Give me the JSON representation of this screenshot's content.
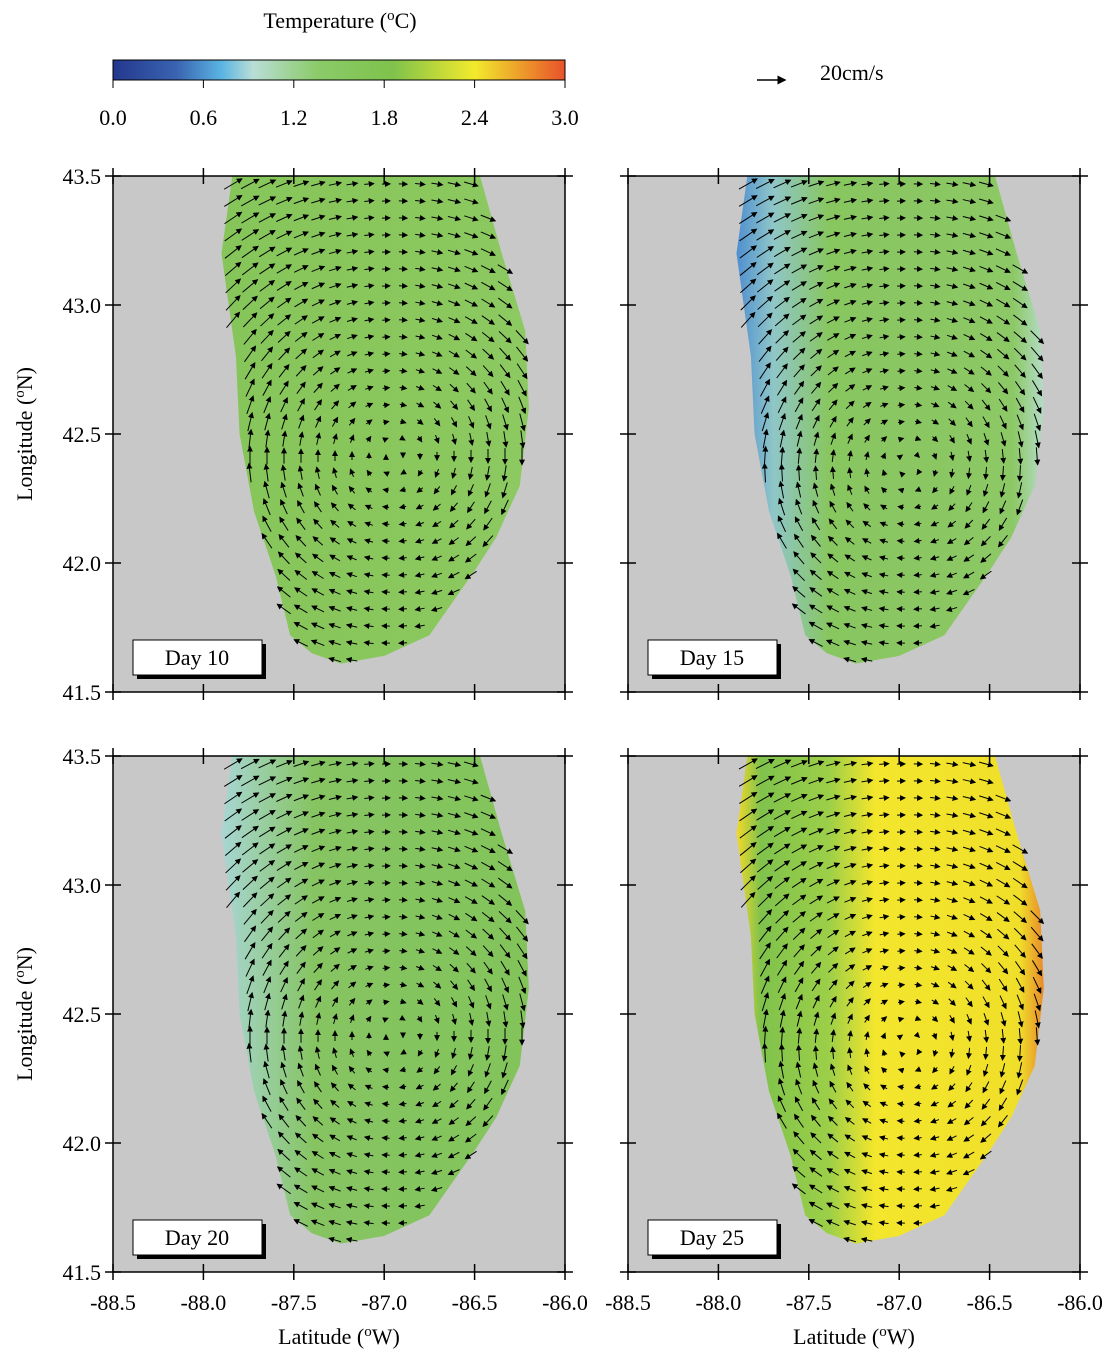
{
  "colorbar": {
    "title": {
      "prefix": "Temperature (",
      "sup": "o",
      "suffix": "C)"
    },
    "lim": [
      0,
      3
    ],
    "ticks": [
      {
        "value": 0,
        "label": "0.0"
      },
      0.6,
      1.2,
      1.8,
      2.4,
      {
        "value": 3,
        "label": "3.0"
      }
    ]
  },
  "scale_label": "20cm/s",
  "axes": {
    "xlim": [
      -88.5,
      -86
    ],
    "ylim": [
      41.5,
      43.5
    ],
    "xticks": [
      -88.5,
      {
        "value": -88,
        "label": "-88.0"
      },
      -87.5,
      {
        "value": -87,
        "label": "-87.0"
      },
      -86.5,
      {
        "value": -86,
        "label": "-86.0"
      }
    ],
    "yticks": [
      41.5,
      {
        "value": 42,
        "label": "42.0"
      },
      42.5,
      {
        "value": 43,
        "label": "43.0"
      },
      43.5
    ],
    "xlabel": {
      "prefix": "Latitude (",
      "sup": "o",
      "suffix": "W)"
    },
    "ylabel": {
      "prefix": "Longitude (",
      "sup": "o",
      "suffix": "N)"
    }
  },
  "panels": [
    {
      "label": "Day 10"
    },
    {
      "label": "Day 15"
    },
    {
      "label": "Day 20"
    },
    {
      "label": "Day 25"
    }
  ]
}
